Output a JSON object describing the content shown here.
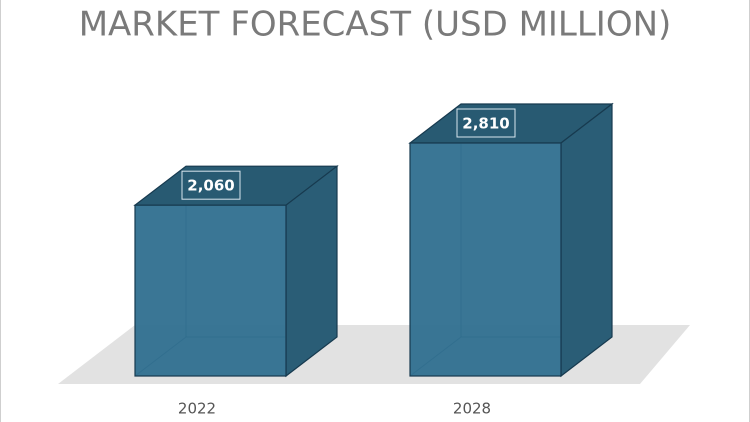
{
  "chart_data": {
    "type": "bar3d",
    "title": "MARKET FORECAST (USD MILLION)",
    "categories": [
      "2022",
      "2028"
    ],
    "values": [
      2060,
      2810
    ],
    "value_labels": [
      "2,060",
      "2,810"
    ],
    "color": "#2f6f8f"
  }
}
